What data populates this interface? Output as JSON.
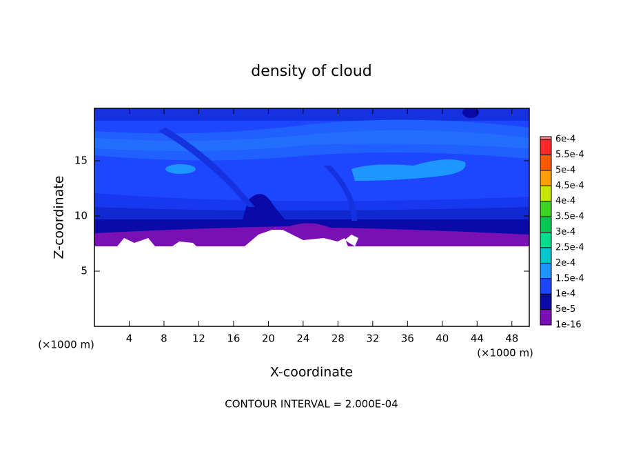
{
  "chart_data": {
    "type": "contour",
    "title": "density of cloud",
    "x_label": "X-coordinate",
    "y_label": "Z-coordinate",
    "x_unit": "(×1000 m)",
    "y_unit": "(×1000 m)",
    "footer": "CONTOUR INTERVAL = 2.000E-04",
    "xlim": [
      0,
      50
    ],
    "ylim": [
      0,
      19.75
    ],
    "xticks": [
      4,
      8,
      12,
      16,
      20,
      24,
      28,
      32,
      36,
      40,
      44,
      48
    ],
    "yticks": [
      5,
      10,
      15
    ],
    "colorbar": {
      "ticks": [
        {
          "value": 1e-16,
          "label": "1e-16"
        },
        {
          "value": 5e-05,
          "label": "5e-5"
        },
        {
          "value": 0.0001,
          "label": "1e-4"
        },
        {
          "value": 0.00015,
          "label": "1.5e-4"
        },
        {
          "value": 0.0002,
          "label": "2e-4"
        },
        {
          "value": 0.00025,
          "label": "2.5e-4"
        },
        {
          "value": 0.0003,
          "label": "3e-4"
        },
        {
          "value": 0.00035,
          "label": "3.5e-4"
        },
        {
          "value": 0.0004,
          "label": "4e-4"
        },
        {
          "value": 0.00045,
          "label": "4.5e-4"
        },
        {
          "value": 0.0005,
          "label": "5e-4"
        },
        {
          "value": 0.00055,
          "label": "5.5e-4"
        },
        {
          "value": 0.0006,
          "label": "6e-4"
        }
      ],
      "colors": [
        "#7a10b4",
        "#0a0aa8",
        "#1e46ff",
        "#1e96ff",
        "#00c8d2",
        "#00dc8c",
        "#00c850",
        "#3cd21e",
        "#c8e600",
        "#ffa000",
        "#ff5a00",
        "#ff2828"
      ],
      "top_color": "#ff8c8c"
    }
  }
}
